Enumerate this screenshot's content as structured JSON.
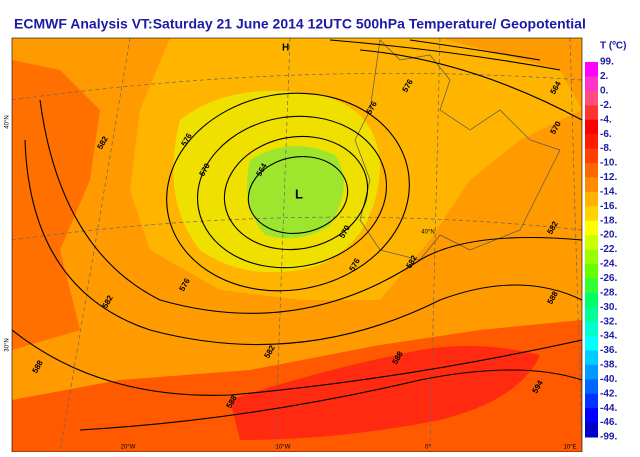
{
  "title": "ECMWF  Analysis VT:Saturday 21 June 2014 12UTC 500hPa Temperature/  Geopotential",
  "legend": {
    "title": "T (ºC)",
    "labels": [
      "99.",
      "2.",
      "0.",
      "-2.",
      "-4.",
      "-6.",
      "-8.",
      "-10.",
      "-12.",
      "-14.",
      "-16.",
      "-18.",
      "-20.",
      "-22.",
      "-24.",
      "-26.",
      "-28.",
      "-30.",
      "-32.",
      "-34.",
      "-36.",
      "-38.",
      "-40.",
      "-42.",
      "-44.",
      "-46.",
      "-99."
    ],
    "colors": [
      "#ff00ff",
      "#ff33cc",
      "#ff4d80",
      "#ff3333",
      "#ff0000",
      "#ff1a00",
      "#ff4000",
      "#ff6600",
      "#ff8c00",
      "#ffb300",
      "#ffd200",
      "#ffff00",
      "#ccff00",
      "#99ff00",
      "#66ff00",
      "#33ff33",
      "#00ff66",
      "#00ff99",
      "#00ffcc",
      "#00ffff",
      "#00ccff",
      "#0099ff",
      "#0066ff",
      "#0033ff",
      "#0000ff",
      "#0000cc"
    ]
  },
  "highs": [
    "H"
  ],
  "lows": [
    "L"
  ],
  "contour_labels": [
    "576",
    "564",
    "570",
    "582",
    "576",
    "570",
    "564",
    "570",
    "576",
    "576",
    "582",
    "588",
    "582",
    "582",
    "588",
    "588",
    "594",
    "582",
    "576",
    "588"
  ],
  "longitude_labels": [
    "20°W",
    "10°W",
    "0°",
    "10°E"
  ],
  "latitude_labels": [
    "40°N",
    "30°N",
    "40°N"
  ]
}
